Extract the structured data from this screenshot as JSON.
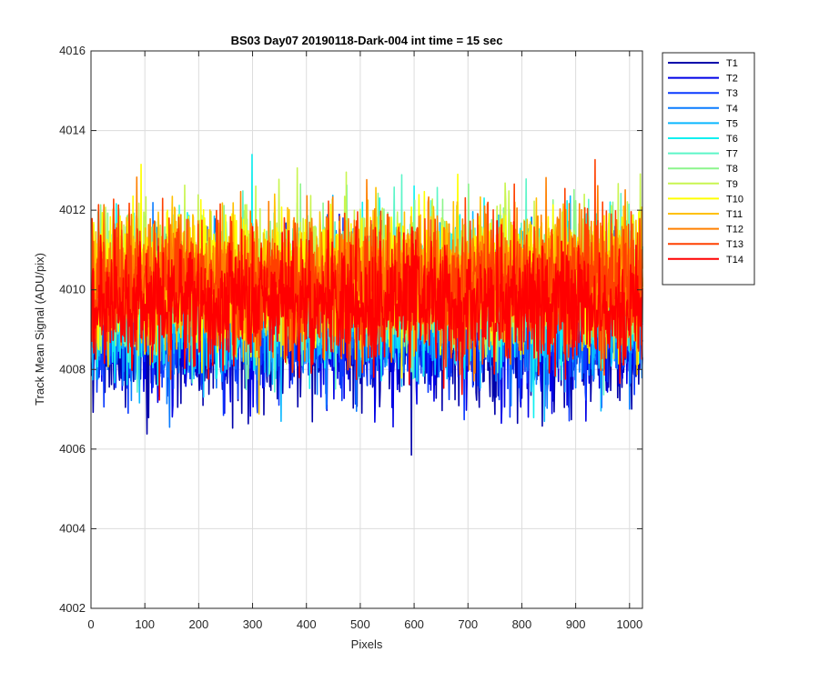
{
  "chart_data": {
    "type": "line",
    "title": "BS03 Day07 20190118-Dark-004 int time = 15 sec",
    "xlabel": "Pixels",
    "ylabel": "Track Mean Signal (ADU/pix)",
    "xlim": [
      0,
      1024
    ],
    "ylim": [
      4002,
      4016
    ],
    "xticks": [
      0,
      100,
      200,
      300,
      400,
      500,
      600,
      700,
      800,
      900,
      1000
    ],
    "yticks": [
      4002,
      4004,
      4006,
      4008,
      4010,
      4012,
      4014,
      4016
    ],
    "grid": true,
    "legend_position": "outside-right",
    "n_points": 1024,
    "series": [
      {
        "name": "T1",
        "color": "#0000aa",
        "mean": 4008.8,
        "std": 0.85,
        "seed": 11
      },
      {
        "name": "T2",
        "color": "#0000e6",
        "mean": 4009.0,
        "std": 0.85,
        "seed": 23
      },
      {
        "name": "T3",
        "color": "#0a3aff",
        "mean": 4009.2,
        "std": 0.85,
        "seed": 37
      },
      {
        "name": "T4",
        "color": "#0a7cff",
        "mean": 4009.4,
        "std": 0.85,
        "seed": 41
      },
      {
        "name": "T5",
        "color": "#0ab8ff",
        "mean": 4009.6,
        "std": 0.85,
        "seed": 53
      },
      {
        "name": "T6",
        "color": "#12f0f0",
        "mean": 4009.9,
        "std": 0.85,
        "seed": 67
      },
      {
        "name": "T7",
        "color": "#5cf5c8",
        "mean": 4010.0,
        "std": 0.85,
        "seed": 71
      },
      {
        "name": "T8",
        "color": "#8cf58c",
        "mean": 4010.2,
        "std": 0.85,
        "seed": 83
      },
      {
        "name": "T9",
        "color": "#c8f550",
        "mean": 4010.3,
        "std": 0.85,
        "seed": 97
      },
      {
        "name": "T10",
        "color": "#ffff00",
        "mean": 4010.4,
        "std": 0.85,
        "seed": 101
      },
      {
        "name": "T11",
        "color": "#ffc000",
        "mean": 4010.3,
        "std": 0.85,
        "seed": 113
      },
      {
        "name": "T12",
        "color": "#ff8000",
        "mean": 4010.3,
        "std": 0.85,
        "seed": 127
      },
      {
        "name": "T13",
        "color": "#ff4000",
        "mean": 4010.1,
        "std": 0.85,
        "seed": 131
      },
      {
        "name": "T14",
        "color": "#ff0000",
        "mean": 4009.6,
        "std": 0.75,
        "seed": 149
      }
    ]
  }
}
